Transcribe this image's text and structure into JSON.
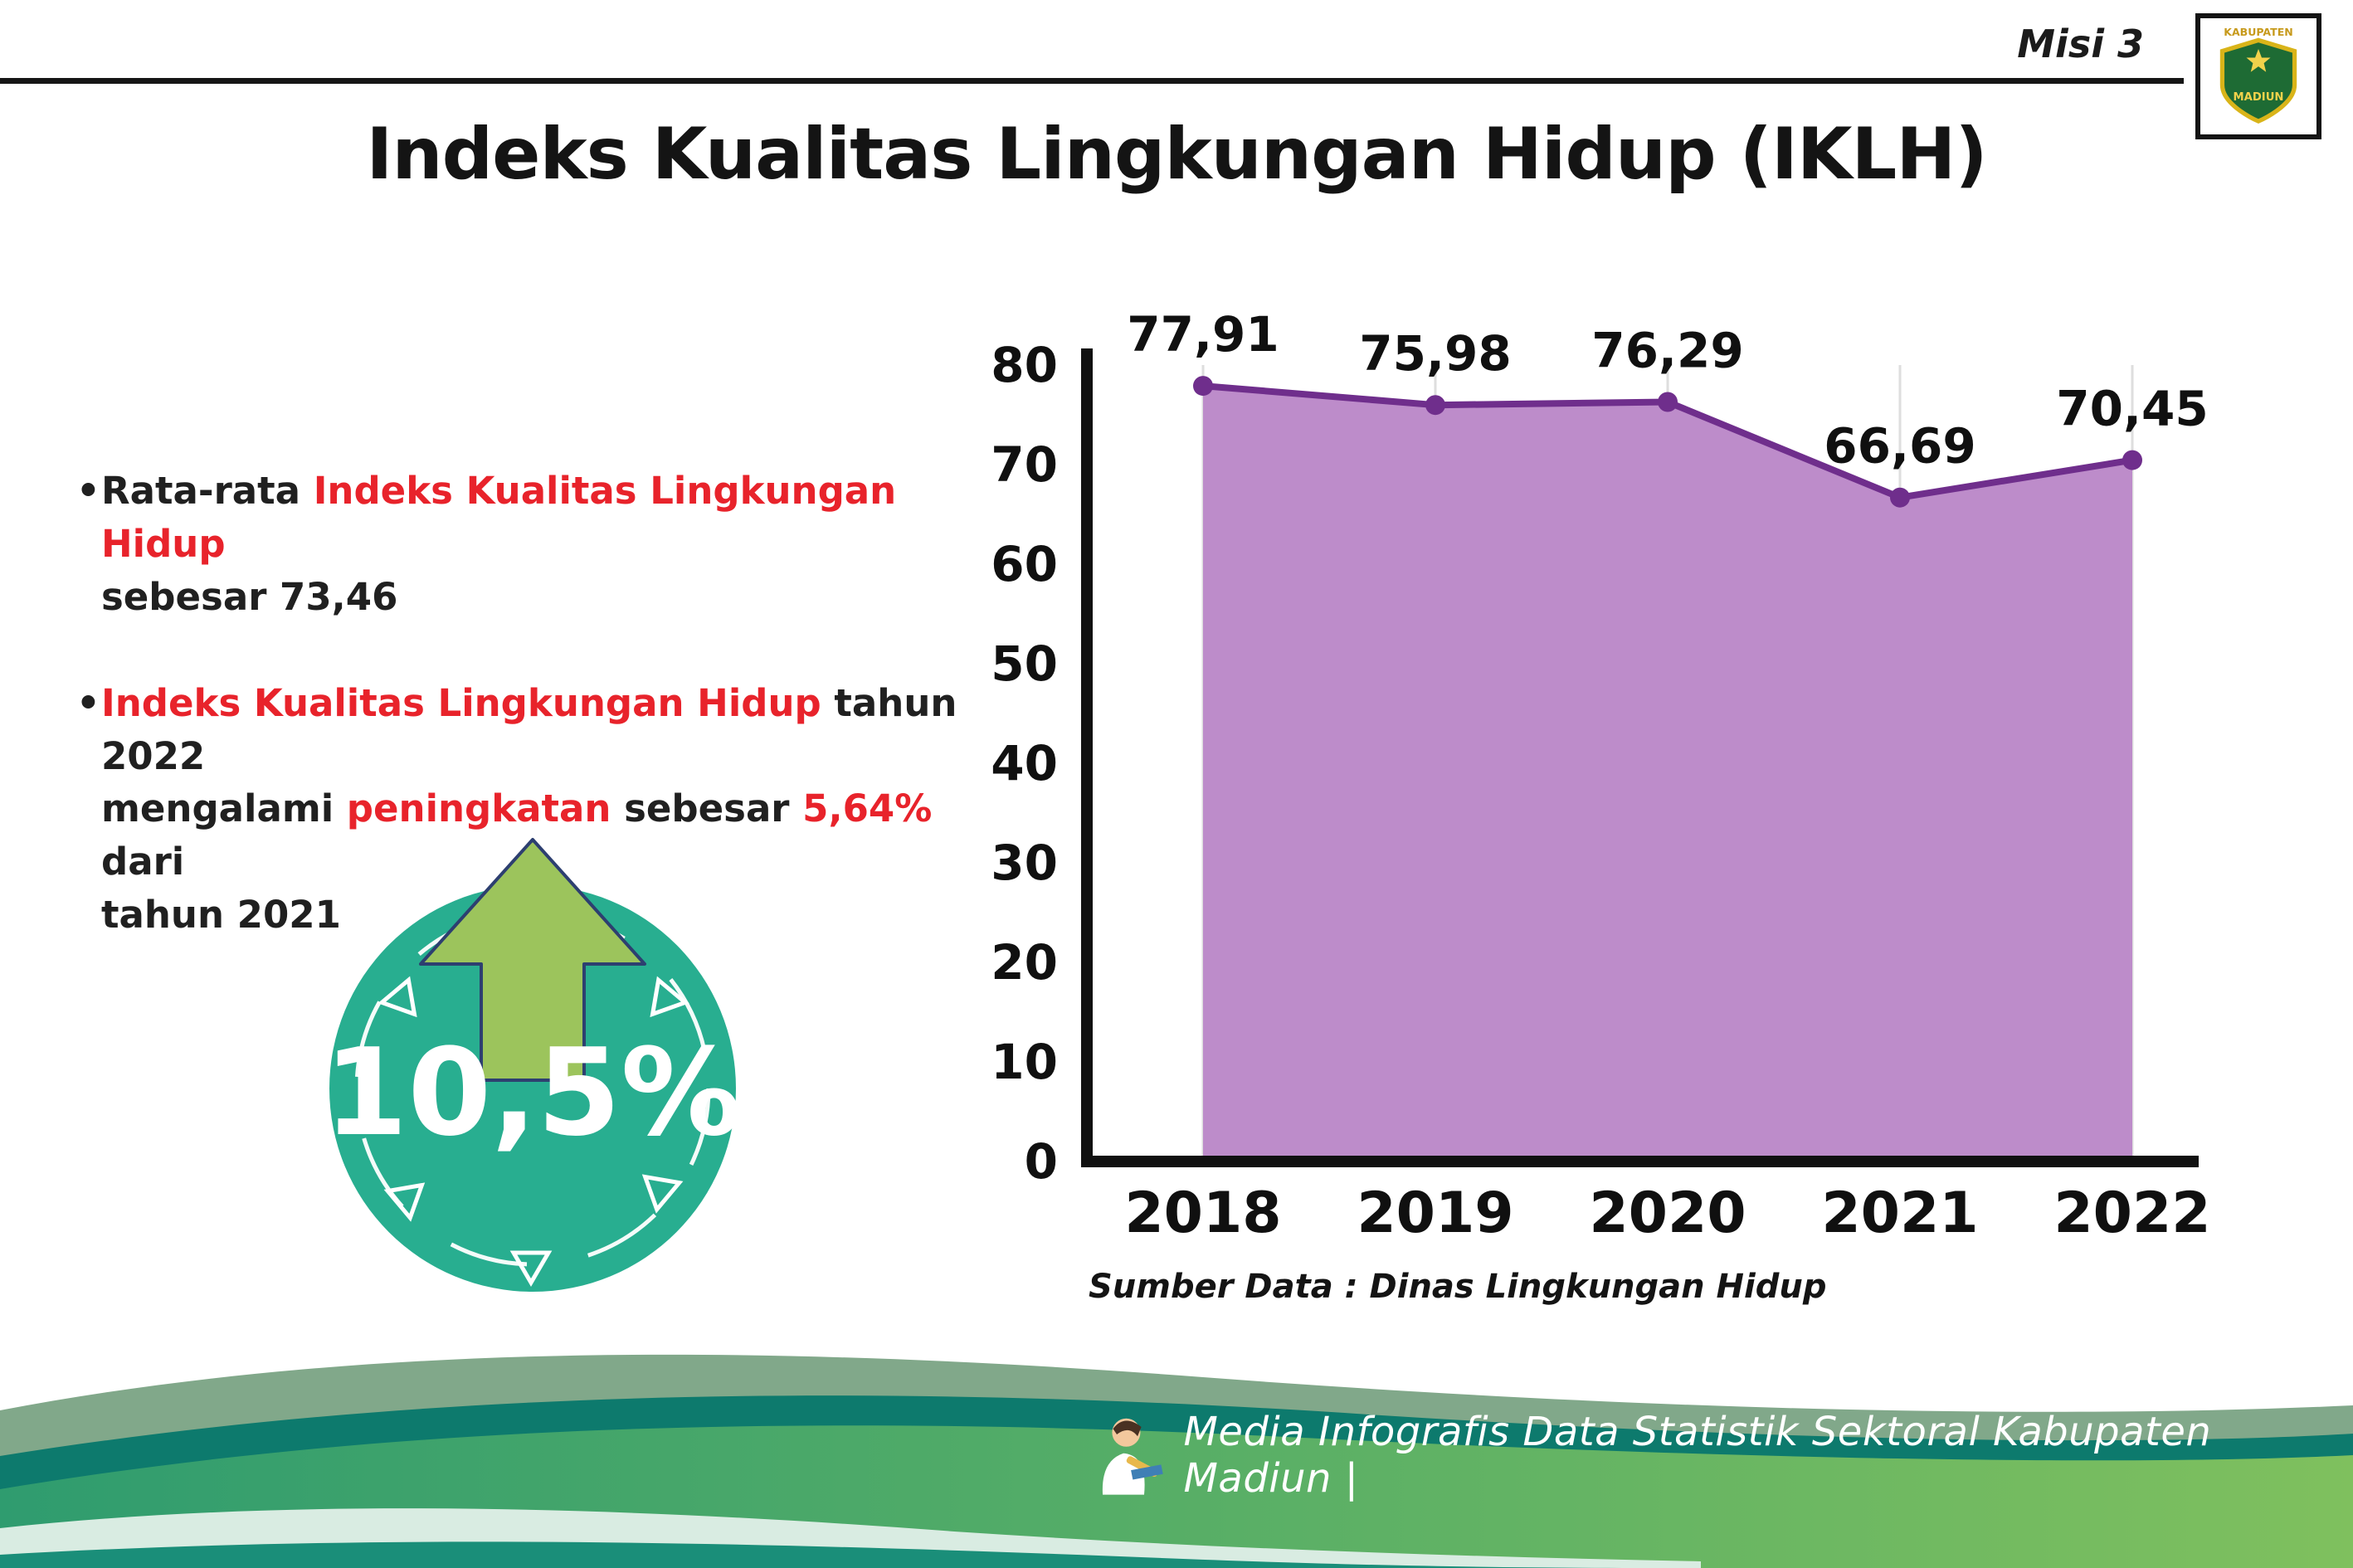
{
  "misi_label": "Misi 3",
  "logo": {
    "top": "KABUPATEN",
    "bottom": "MADIUN"
  },
  "title": "Indeks Kualitas Lingkungan Hidup (IKLH)",
  "bullets": {
    "bullet1": {
      "p1": "Rata-rata ",
      "p2": "Indeks Kualitas Lingkungan Hidup",
      "p3": "sebesar 73,46"
    },
    "bullet2": {
      "p1": "Indeks Kualitas Lingkungan Hidup",
      "p2": " tahun 2022",
      "p3": "mengalami ",
      "p4": "peningkatan",
      "p5": " sebesar ",
      "p6": "5,64%",
      "p7": " dari",
      "p8": "tahun 2021"
    }
  },
  "badge": {
    "value": "10,5%"
  },
  "chart_data": {
    "type": "area",
    "title": "",
    "categories": [
      "2018",
      "2019",
      "2020",
      "2021",
      "2022"
    ],
    "values": [
      77.91,
      75.98,
      76.29,
      66.69,
      70.45
    ],
    "labels": [
      "77,91",
      "75,98",
      "76,29",
      "66,69",
      "70,45"
    ],
    "ylim": [
      0,
      80
    ],
    "ytick_step": 10,
    "xlabel": "",
    "ylabel": "",
    "grid": "vertical-light",
    "legend": "none",
    "source": "Sumber Data : Dinas Lingkungan Hidup",
    "colors": {
      "area": "#bd8cca",
      "line": "#6f2e8c",
      "point": "#6f2e8c"
    }
  },
  "footer": {
    "text": "Media Infografis Data Statistik Sektoral Kabupaten Madiun |"
  }
}
